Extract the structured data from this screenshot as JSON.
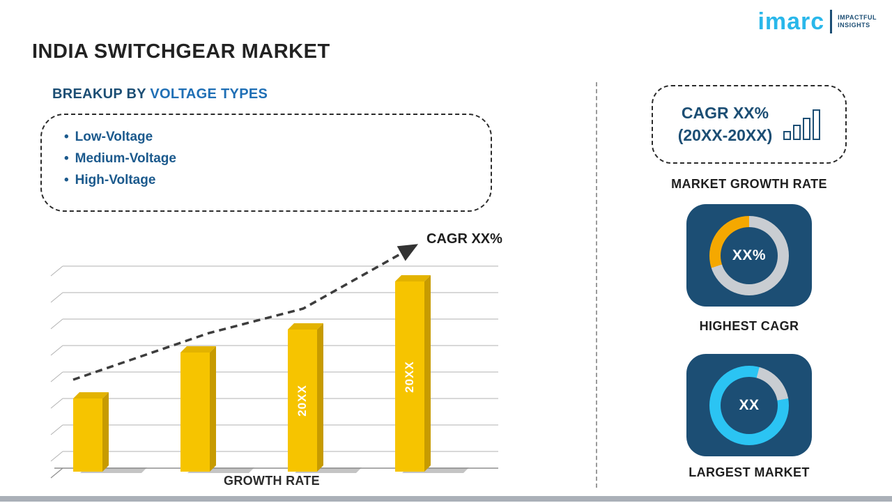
{
  "page": {
    "title": "INDIA SWITCHGEAR MARKET",
    "logo": {
      "brand": "imarc",
      "tagline_line1": "IMPACTFUL",
      "tagline_line2": "INSIGHTS"
    }
  },
  "breakup": {
    "heading_prefix": "BREAKUP BY",
    "heading_highlight": "VOLTAGE TYPES",
    "items": [
      "Low-Voltage",
      "Medium-Voltage",
      "High-Voltage"
    ]
  },
  "chart_data": [
    {
      "type": "bar",
      "title": "",
      "categories": [
        "",
        "",
        "20XX",
        "20XX"
      ],
      "values": [
        35,
        57,
        68,
        91
      ],
      "values_unit": "relative bar height, % of plot area (placeholder chart)",
      "xlabel": "GROWTH RATE",
      "ylabel": "",
      "trend_label": "CAGR XX%",
      "trend_style": "dashed-arrow-up",
      "gridlines": true,
      "legend": "none",
      "bar_color": "#F6C400"
    },
    {
      "type": "pie",
      "variant": "donut",
      "label": "HIGHEST CAGR",
      "center_text": "XX%",
      "segment_start_deg": 0,
      "segments": [
        {
          "name": "remainder",
          "value": 70,
          "color": "#C9CDD2"
        },
        {
          "name": "highlight",
          "value": 30,
          "color": "#F5A800"
        }
      ]
    },
    {
      "type": "pie",
      "variant": "donut",
      "label": "LARGEST MARKET",
      "center_text": "XX",
      "segment_start_deg": 15,
      "segments": [
        {
          "name": "remainder",
          "value": 18,
          "color": "#C9CDD2"
        },
        {
          "name": "highlight",
          "value": 82,
          "color": "#2BC4F3"
        }
      ]
    }
  ],
  "right": {
    "growth_card": {
      "line1": "CAGR XX%",
      "line2": "(20XX-20XX)",
      "caption": "MARKET GROWTH RATE"
    }
  },
  "colors": {
    "navy": "#1C4E74",
    "accent-blue": "#1F6FB5",
    "bullet-blue": "#1C5A8D",
    "bar-yellow": "#F6C400",
    "bar-top": "#E3B300",
    "bar-side": "#C79B00",
    "logo-cyan": "#29B7EA",
    "ring-gray": "#C9CDD2",
    "segment-orange": "#F5A800",
    "ring-cyan": "#2BC4F3"
  }
}
